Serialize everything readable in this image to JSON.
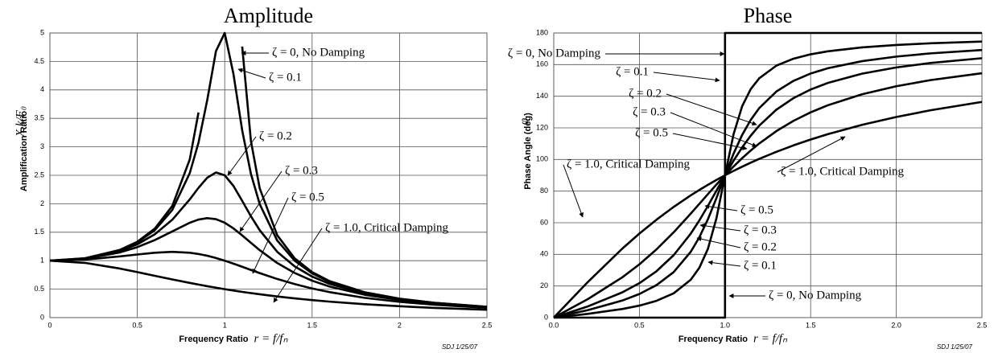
{
  "chart_data": [
    {
      "type": "line",
      "title": "Amplitude",
      "x_label": "Frequency Ratio",
      "x_label_math": "r = f/fₙ",
      "y_label": "Amplification Ratio",
      "y_label_math": "X k/F₀",
      "note": "SDJ 1/25/07",
      "xlim": [
        0,
        2.5
      ],
      "xticks": [
        0,
        0.5,
        1,
        1.5,
        2,
        2.5
      ],
      "ylim": [
        0,
        5
      ],
      "yticks": [
        0,
        0.5,
        1,
        1.5,
        2,
        2.5,
        3,
        3.5,
        4,
        4.5,
        5
      ],
      "grid": true,
      "x": [
        0,
        0.2,
        0.4,
        0.5,
        0.6,
        0.7,
        0.8,
        0.85,
        0.9,
        0.95,
        1.0,
        1.05,
        1.1,
        1.15,
        1.2,
        1.3,
        1.4,
        1.5,
        1.6,
        1.8,
        2.0,
        2.2,
        2.5
      ],
      "series": [
        {
          "color": "#000000",
          "values": [
            1,
            1.042,
            1.19,
            1.333,
            1.563,
            1.961,
            2.778,
            3.604,
            null,
            null,
            null,
            null,
            4.762,
            3.101,
            2.273,
            1.449,
            1.042,
            0.8,
            0.641,
            0.446,
            0.333,
            0.26,
            0.19
          ]
        },
        {
          "color": "#000000",
          "values": [
            1,
            1.041,
            1.185,
            1.322,
            1.536,
            1.891,
            2.538,
            3.073,
            3.821,
            4.682,
            5.0,
            4.279,
            3.288,
            2.525,
            1.995,
            1.356,
            1.0,
            0.778,
            0.628,
            0.441,
            0.33,
            0.259,
            0.19
          ]
        },
        {
          "color": "#000000",
          "values": [
            1,
            1.038,
            1.169,
            1.288,
            1.463,
            1.719,
            2.076,
            2.279,
            2.457,
            2.549,
            2.5,
            2.313,
            2.051,
            1.78,
            1.536,
            1.157,
            0.9,
            0.721,
            0.593,
            0.425,
            0.322,
            0.254,
            0.187
          ]
        },
        {
          "color": "#000000",
          "values": [
            1,
            1.034,
            1.145,
            1.238,
            1.362,
            1.514,
            1.667,
            1.722,
            1.747,
            1.729,
            1.667,
            1.567,
            1.444,
            1.313,
            1.185,
            0.96,
            0.784,
            0.649,
            0.546,
            0.402,
            0.309,
            0.246,
            0.183
          ]
        },
        {
          "color": "#000000",
          "values": [
            1,
            1.02,
            1.075,
            1.109,
            1.14,
            1.155,
            1.14,
            1.118,
            1.087,
            1.047,
            1.0,
            0.948,
            0.893,
            0.837,
            0.782,
            0.679,
            0.589,
            0.512,
            0.448,
            0.348,
            0.277,
            0.226,
            0.172
          ]
        },
        {
          "color": "#000000",
          "values": [
            1,
            0.962,
            0.862,
            0.8,
            0.735,
            0.671,
            0.61,
            0.581,
            0.552,
            0.526,
            0.5,
            0.476,
            0.452,
            0.431,
            0.41,
            0.372,
            0.338,
            0.308,
            0.281,
            0.236,
            0.2,
            0.171,
            0.138
          ]
        }
      ],
      "annotations": [
        {
          "text": "ζ = 0,  No Damping"
        },
        {
          "text": "ζ = 0.1"
        },
        {
          "text": "ζ = 0.2"
        },
        {
          "text": "ζ = 0.3"
        },
        {
          "text": "ζ = 0.5"
        },
        {
          "text": "ζ = 1.0, Critical Damping"
        }
      ]
    },
    {
      "type": "line",
      "title": "Phase",
      "x_label": "Frequency Ratio",
      "x_label_math": "r = f/fₙ",
      "y_label": "Phase Angle (deg)",
      "y_label_math": "φ",
      "note": "SDJ 1/25/07",
      "xlim": [
        0,
        2.5
      ],
      "xticks": [
        {
          "value": 0,
          "label": "0.0"
        },
        {
          "value": 0.5,
          "label": "0.5"
        },
        {
          "value": 1,
          "label": "1.0"
        },
        {
          "value": 1.5,
          "label": "1.5"
        },
        {
          "value": 2,
          "label": "2.0"
        },
        {
          "value": 2.5,
          "label": "2.5"
        }
      ],
      "ylim": [
        0,
        180
      ],
      "yticks": [
        0,
        20,
        40,
        60,
        80,
        100,
        120,
        140,
        160,
        180
      ],
      "grid": true,
      "x": [
        0,
        0.2,
        0.4,
        0.5,
        0.6,
        0.7,
        0.8,
        0.85,
        0.9,
        0.95,
        1.0,
        1.05,
        1.1,
        1.15,
        1.2,
        1.3,
        1.4,
        1.5,
        1.6,
        1.8,
        2.0,
        2.2,
        2.5
      ],
      "series": [
        {
          "color": "#000000",
          "x": [
            0,
            1,
            1,
            2.5
          ],
          "values": [
            0,
            0,
            180,
            180
          ]
        },
        {
          "color": "#000000",
          "values": [
            0,
            2.39,
            5.44,
            7.59,
            10.62,
            15.35,
            23.96,
            31.49,
            43.45,
            62.84,
            90,
            116.01,
            133.67,
            144.5,
            151.39,
            159.35,
            163.74,
            166.5,
            168.41,
            170.87,
            172.41,
            173.46,
            174.56
          ]
        },
        {
          "color": "#000000",
          "values": [
            0,
            4.76,
            10.78,
            14.93,
            20.56,
            28.77,
            41.63,
            50.78,
            62.18,
            75.61,
            90,
            103.71,
            115.52,
            125.03,
            132.51,
            143.0,
            149.74,
            154.36,
            157.69,
            162.18,
            165.07,
            167.09,
            169.22
          ]
        },
        {
          "color": "#000000",
          "values": [
            0,
            7.13,
            15.95,
            21.8,
            29.36,
            39.47,
            53.13,
            61.45,
            70.62,
            80.29,
            90,
            99.24,
            107.65,
            115.05,
            121.43,
            131.5,
            138.81,
            144.25,
            148.39,
            154.26,
            158.2,
            161.03,
            164.05
          ]
        },
        {
          "color": "#000000",
          "values": [
            0,
            11.77,
            25.46,
            33.69,
            43.15,
            53.92,
            65.77,
            71.92,
            78.08,
            84.14,
            90,
            95.58,
            100.81,
            105.66,
            110.14,
            117.96,
            124.44,
            129.81,
            134.27,
            141.22,
            146.31,
            150.19,
            154.54
          ]
        },
        {
          "color": "#000000",
          "values": [
            0,
            22.62,
            43.6,
            53.13,
            61.93,
            69.98,
            77.32,
            80.72,
            83.97,
            87.06,
            90,
            92.8,
            95.45,
            97.98,
            100.39,
            104.85,
            108.92,
            112.62,
            115.99,
            121.89,
            126.87,
            131.11,
            136.4
          ]
        }
      ],
      "annotations": [
        {
          "text": "ζ = 0,  No Damping"
        },
        {
          "text": "ζ = 0.1"
        },
        {
          "text": "ζ = 0.2"
        },
        {
          "text": "ζ = 0.3"
        },
        {
          "text": "ζ = 0.5"
        },
        {
          "text": "ζ = 1.0, Critical Damping"
        },
        {
          "text": "ζ = 1.0, Critical Damping"
        },
        {
          "text": "ζ = 0.5"
        },
        {
          "text": "ζ = 0.3"
        },
        {
          "text": "ζ = 0.2"
        },
        {
          "text": "ζ = 0.1"
        },
        {
          "text": "ζ = 0,  No Damping"
        }
      ]
    }
  ]
}
